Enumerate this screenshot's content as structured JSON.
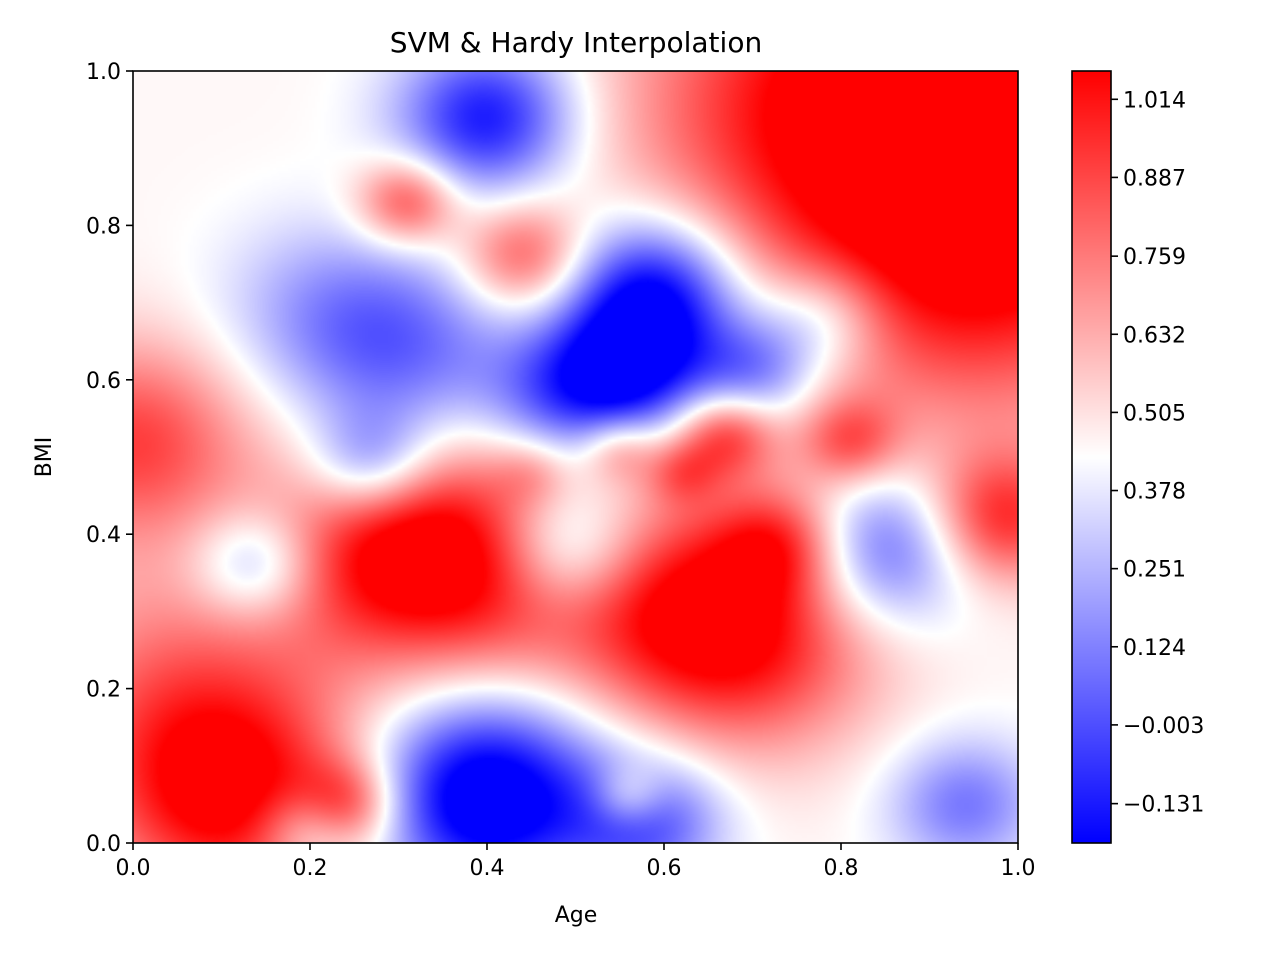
{
  "chart_data": {
    "type": "heatmap",
    "title": "SVM & Hardy Interpolation",
    "xlabel": "Age",
    "ylabel": "BMI",
    "xlim": [
      0.0,
      1.0
    ],
    "ylim": [
      0.0,
      1.0
    ],
    "x_ticks": [
      0.0,
      0.2,
      0.4,
      0.6,
      0.8,
      1.0
    ],
    "x_tick_labels": [
      "0.0",
      "0.2",
      "0.4",
      "0.6",
      "0.8",
      "1.0"
    ],
    "y_ticks": [
      0.0,
      0.2,
      0.4,
      0.6,
      0.8,
      1.0
    ],
    "y_tick_labels": [
      "0.0",
      "0.2",
      "0.4",
      "0.6",
      "0.8",
      "1.0"
    ],
    "colormap": {
      "name": "bwr",
      "low_color": "#0000ff",
      "mid_color": "#ffffff",
      "high_color": "#ff0000"
    },
    "colorbar": {
      "vmin": -0.195,
      "vmax": 1.06,
      "ticks": [
        -0.131,
        -0.003,
        0.124,
        0.251,
        0.378,
        0.505,
        0.632,
        0.759,
        0.887,
        1.014
      ],
      "tick_labels": [
        "−0.131",
        "−0.003",
        "0.124",
        "0.251",
        "0.378",
        "0.505",
        "0.632",
        "0.759",
        "0.887",
        "1.014"
      ]
    },
    "field": {
      "base": 0.45,
      "blobs": [
        {
          "x": 1.0,
          "y": 1.0,
          "amp": 0.62,
          "r": 0.2
        },
        {
          "x": 0.95,
          "y": 0.75,
          "amp": 0.45,
          "r": 0.15
        },
        {
          "x": 0.75,
          "y": 0.95,
          "amp": 0.35,
          "r": 0.15
        },
        {
          "x": 0.98,
          "y": 0.42,
          "amp": 0.5,
          "r": 0.06
        },
        {
          "x": 0.0,
          "y": 0.52,
          "amp": 0.45,
          "r": 0.09
        },
        {
          "x": 0.3,
          "y": 0.38,
          "amp": 0.6,
          "r": 0.1
        },
        {
          "x": 0.42,
          "y": 0.35,
          "amp": 0.35,
          "r": 0.1
        },
        {
          "x": 0.63,
          "y": 0.3,
          "amp": 0.55,
          "r": 0.1
        },
        {
          "x": 0.72,
          "y": 0.25,
          "amp": 0.3,
          "r": 0.1
        },
        {
          "x": 0.11,
          "y": 0.06,
          "amp": 0.6,
          "r": 0.1
        },
        {
          "x": 0.05,
          "y": 0.2,
          "amp": 0.3,
          "r": 0.12
        },
        {
          "x": 0.24,
          "y": 0.05,
          "amp": 0.4,
          "r": 0.04
        },
        {
          "x": 0.56,
          "y": 0.06,
          "amp": 0.3,
          "r": 0.03
        },
        {
          "x": 0.31,
          "y": 0.83,
          "amp": 0.45,
          "r": 0.04
        },
        {
          "x": 0.44,
          "y": 0.76,
          "amp": 0.4,
          "r": 0.05
        },
        {
          "x": 0.67,
          "y": 0.53,
          "amp": 0.45,
          "r": 0.04
        },
        {
          "x": 0.81,
          "y": 0.52,
          "amp": 0.35,
          "r": 0.04
        },
        {
          "x": 0.73,
          "y": 0.39,
          "amp": 0.35,
          "r": 0.05
        },
        {
          "x": 0.55,
          "y": 0.51,
          "amp": 0.25,
          "r": 0.03
        },
        {
          "x": 0.62,
          "y": 0.48,
          "amp": 0.25,
          "r": 0.03
        },
        {
          "x": 0.45,
          "y": 0.48,
          "amp": 0.15,
          "r": 0.03
        },
        {
          "x": 0.14,
          "y": 0.36,
          "amp": -0.35,
          "r": 0.05
        },
        {
          "x": 0.4,
          "y": 0.06,
          "amp": -0.8,
          "r": 0.09
        },
        {
          "x": 0.58,
          "y": 0.03,
          "amp": -0.45,
          "r": 0.06
        },
        {
          "x": 0.2,
          "y": 0.02,
          "amp": -0.3,
          "r": 0.04
        },
        {
          "x": 0.94,
          "y": 0.05,
          "amp": -0.35,
          "r": 0.06
        },
        {
          "x": 0.59,
          "y": 0.71,
          "amp": -0.7,
          "r": 0.07
        },
        {
          "x": 0.56,
          "y": 0.61,
          "amp": -0.55,
          "r": 0.06
        },
        {
          "x": 0.3,
          "y": 0.64,
          "amp": -0.4,
          "r": 0.09
        },
        {
          "x": 0.4,
          "y": 0.94,
          "amp": -0.6,
          "r": 0.07
        },
        {
          "x": 0.27,
          "y": 0.49,
          "amp": -0.4,
          "r": 0.05
        },
        {
          "x": 0.49,
          "y": 0.38,
          "amp": -0.45,
          "r": 0.06
        },
        {
          "x": 0.85,
          "y": 0.38,
          "amp": -0.45,
          "r": 0.07
        },
        {
          "x": 0.78,
          "y": 0.68,
          "amp": -0.3,
          "r": 0.05
        },
        {
          "x": 0.7,
          "y": 0.61,
          "amp": -0.4,
          "r": 0.05
        },
        {
          "x": 0.48,
          "y": 0.58,
          "amp": -0.35,
          "r": 0.06
        },
        {
          "x": 0.2,
          "y": 0.7,
          "amp": -0.15,
          "r": 0.08
        }
      ]
    }
  }
}
